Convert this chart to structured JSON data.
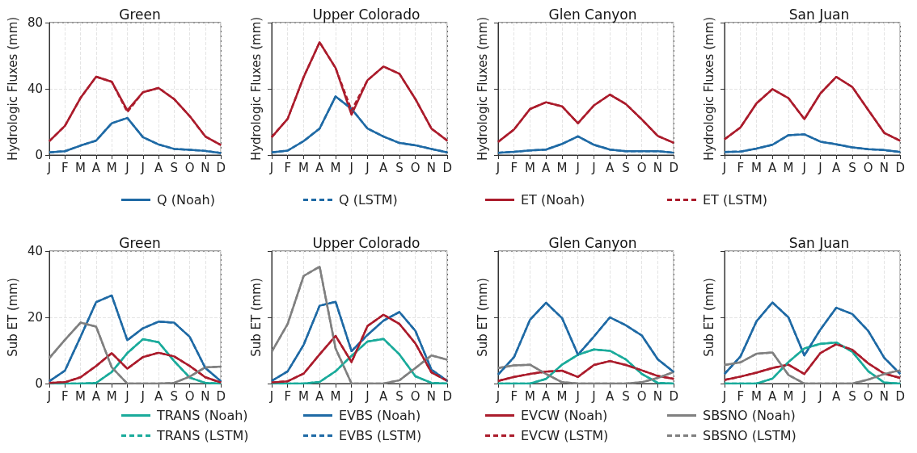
{
  "chart_data": [
    {
      "type": "line",
      "title": "Green",
      "ylabel": "Hydrologic Fluxes (mm)",
      "categories": [
        "J",
        "F",
        "M",
        "A",
        "M",
        "J",
        "J",
        "A",
        "S",
        "O",
        "N",
        "D"
      ],
      "ylim": [
        0,
        80
      ],
      "yticks": [
        0,
        40,
        80
      ],
      "grid": true,
      "legend": "bottom",
      "series": [
        {
          "name": "Q (Noah)",
          "color": "#1f6aa5",
          "values": [
            1.6,
            2.3,
            5.7,
            8.7,
            19.2,
            22.4,
            10.8,
            6.4,
            3.7,
            3.2,
            2.5,
            1.2
          ]
        },
        {
          "name": "Q (LSTM)",
          "color": "#1f6aa5",
          "line_style": "dashed",
          "values": [
            1.6,
            2.3,
            5.7,
            8.7,
            19.2,
            22.4,
            10.8,
            6.4,
            3.7,
            3.2,
            2.5,
            1.2
          ]
        },
        {
          "name": "ET (Noah)",
          "color": "#ab1c2c",
          "values": [
            8.4,
            17.6,
            34.5,
            47.3,
            44.3,
            27,
            37.9,
            40.5,
            33.8,
            23.5,
            11.2,
            6
          ]
        },
        {
          "name": "ET (LSTM)",
          "color": "#ab1c2c",
          "line_style": "dashed",
          "values": [
            8.4,
            17.6,
            34.5,
            47.3,
            44.3,
            26,
            37.9,
            40.5,
            33.8,
            23.5,
            11.2,
            6
          ]
        }
      ]
    },
    {
      "type": "line",
      "title": "Upper Colorado",
      "ylabel": "Hydrologic Fluxes (mm)",
      "categories": [
        "J",
        "F",
        "M",
        "A",
        "M",
        "J",
        "J",
        "A",
        "S",
        "O",
        "N",
        "D"
      ],
      "ylim": [
        0,
        80
      ],
      "yticks": [
        0,
        40,
        80
      ],
      "tick_labels": "x",
      "grid": true,
      "legend": "bottom",
      "series": [
        {
          "name": "Q (Noah)",
          "color": "#1f6aa5",
          "values": [
            1.6,
            2.7,
            8.4,
            16,
            35.4,
            27.9,
            16,
            11.2,
            7.3,
            5.9,
            3.7,
            1.6
          ]
        },
        {
          "name": "Q (LSTM)",
          "color": "#1f6aa5",
          "line_style": "dashed",
          "values": [
            1.6,
            2.7,
            8.4,
            16,
            35.4,
            27.9,
            16,
            11.2,
            7.3,
            5.9,
            3.7,
            1.6
          ]
        },
        {
          "name": "ET (Noah)",
          "color": "#ab1c2c",
          "values": [
            10.8,
            21.9,
            47.1,
            68.1,
            52.6,
            24.4,
            45.2,
            53.5,
            49.1,
            33.8,
            16,
            8.7
          ]
        },
        {
          "name": "ET (LSTM)",
          "color": "#ab1c2c",
          "line_style": "dashed",
          "values": [
            10.8,
            21.9,
            47.1,
            68.1,
            52.6,
            27,
            45.2,
            53.5,
            49.1,
            33.8,
            16,
            8.7
          ]
        }
      ]
    },
    {
      "type": "line",
      "title": "Glen Canyon",
      "ylabel": "Hydrologic Fluxes (mm)",
      "categories": [
        "J",
        "F",
        "M",
        "A",
        "M",
        "J",
        "J",
        "A",
        "S",
        "O",
        "N",
        "D"
      ],
      "ylim": [
        0,
        80
      ],
      "yticks": [
        0,
        40,
        80
      ],
      "tick_labels": "x",
      "grid": true,
      "legend": "bottom",
      "series": [
        {
          "name": "Q (Noah)",
          "color": "#1f6aa5",
          "values": [
            1.4,
            1.9,
            2.8,
            3.3,
            6.7,
            11.3,
            6.2,
            3.3,
            2.3,
            2.3,
            2.3,
            1.4
          ]
        },
        {
          "name": "Q (LSTM)",
          "color": "#1f6aa5",
          "line_style": "dashed",
          "values": [
            1.4,
            1.9,
            2.8,
            3.3,
            6.7,
            11.3,
            6.2,
            3.3,
            2.3,
            2.3,
            2.3,
            1.4
          ]
        },
        {
          "name": "ET (Noah)",
          "color": "#ab1c2c",
          "values": [
            7.9,
            15.5,
            27.8,
            31.9,
            29.4,
            19.2,
            30,
            36.5,
            30.8,
            21.5,
            11.5,
            7.4
          ]
        },
        {
          "name": "ET (LSTM)",
          "color": "#ab1c2c",
          "line_style": "dashed",
          "values": [
            7.9,
            15.5,
            27.8,
            31.9,
            29.4,
            19.2,
            30,
            36.5,
            30.8,
            21.5,
            11.5,
            7.4
          ]
        }
      ]
    },
    {
      "type": "line",
      "title": "San Juan",
      "ylabel": "Hydrologic Fluxes (mm)",
      "categories": [
        "J",
        "F",
        "M",
        "A",
        "M",
        "J",
        "J",
        "A",
        "S",
        "O",
        "N",
        "D"
      ],
      "ylim": [
        0,
        80
      ],
      "yticks": [
        0,
        40,
        80
      ],
      "tick_labels": "x",
      "grid": true,
      "legend": "bottom",
      "series": [
        {
          "name": "Q (Noah)",
          "color": "#1f6aa5",
          "values": [
            1.8,
            2.1,
            3.9,
            6.2,
            12,
            12.5,
            8.1,
            6.5,
            4.6,
            3.5,
            3,
            1.8
          ]
        },
        {
          "name": "Q (LSTM)",
          "color": "#1f6aa5",
          "line_style": "dashed",
          "values": [
            1.8,
            2.1,
            3.9,
            6.2,
            12,
            12.5,
            8.1,
            6.5,
            4.6,
            3.5,
            3,
            1.8
          ]
        },
        {
          "name": "ET (Noah)",
          "color": "#ab1c2c",
          "values": [
            9.5,
            16.7,
            31.2,
            39.8,
            34.4,
            21.7,
            37.2,
            47.2,
            41.1,
            27.2,
            13.4,
            8.6
          ]
        },
        {
          "name": "ET (LSTM)",
          "color": "#ab1c2c",
          "line_style": "dashed",
          "values": [
            9.5,
            16.7,
            31.2,
            39.8,
            34.4,
            21.7,
            37.2,
            47.2,
            41.1,
            27.2,
            13.4,
            8.6
          ]
        }
      ]
    },
    {
      "type": "line",
      "title": "Green",
      "ylabel": "Sub ET (mm)",
      "categories": [
        "J",
        "F",
        "M",
        "A",
        "M",
        "J",
        "J",
        "A",
        "S",
        "O",
        "N",
        "D"
      ],
      "ylim": [
        0,
        40
      ],
      "yticks": [
        0,
        20,
        40
      ],
      "grid": true,
      "legend": "bottom",
      "series": [
        {
          "name": "TRANS (Noah)",
          "color": "#1aab9b",
          "values": [
            0,
            0,
            0,
            0.2,
            3.5,
            9.2,
            13.4,
            12.5,
            6.8,
            1.8,
            0.2,
            0
          ]
        },
        {
          "name": "TRANS (LSTM)",
          "color": "#1aab9b",
          "line_style": "dashed",
          "values": [
            0,
            0,
            0,
            0.2,
            3.5,
            9.2,
            13.4,
            12.5,
            6.8,
            1.8,
            0.2,
            0
          ]
        },
        {
          "name": "EVBS (Noah)",
          "color": "#1f6aa5",
          "values": [
            0.7,
            3.9,
            14.1,
            24.6,
            26.6,
            13.1,
            16.7,
            18.7,
            18.4,
            14.1,
            4.7,
            0.7
          ]
        },
        {
          "name": "EVBS (LSTM)",
          "color": "#1f6aa5",
          "line_style": "dashed",
          "values": [
            0.7,
            3.9,
            14.1,
            24.6,
            26.6,
            13.1,
            16.7,
            18.7,
            18.4,
            14.1,
            4.7,
            0.7
          ]
        },
        {
          "name": "EVCW (Noah)",
          "color": "#ab1c2c",
          "values": [
            0.2,
            0.4,
            1.9,
            5.3,
            9.2,
            4.5,
            8,
            9.3,
            8.2,
            5.3,
            1.9,
            0.3
          ]
        },
        {
          "name": "EVCW (LSTM)",
          "color": "#ab1c2c",
          "line_style": "dashed",
          "values": [
            0.2,
            0.4,
            1.9,
            5.3,
            9.2,
            4.5,
            8,
            9.3,
            8.2,
            5.3,
            1.9,
            0.3
          ]
        },
        {
          "name": "SBSNO (Noah)",
          "color": "#808080",
          "values": [
            7.7,
            13.2,
            18.4,
            17.2,
            4.9,
            0,
            0,
            0,
            0.2,
            2.1,
            4.9,
            5.1
          ]
        },
        {
          "name": "SBSNO (LSTM)",
          "color": "#808080",
          "line_style": "dashed",
          "values": [
            7.7,
            13.2,
            18.4,
            17.2,
            4.9,
            0,
            0,
            0,
            0.2,
            2.1,
            4.9,
            5.1
          ]
        }
      ]
    },
    {
      "type": "line",
      "title": "Upper Colorado",
      "ylabel": "Sub ET (mm)",
      "categories": [
        "J",
        "F",
        "M",
        "A",
        "M",
        "J",
        "J",
        "A",
        "S",
        "O",
        "N",
        "D"
      ],
      "ylim": [
        0,
        40
      ],
      "yticks": [
        0,
        20,
        40
      ],
      "tick_labels": "x",
      "grid": true,
      "legend": "bottom",
      "series": [
        {
          "name": "TRANS (Noah)",
          "color": "#1aab9b",
          "values": [
            0,
            0,
            0,
            0.5,
            3.7,
            8.4,
            12.7,
            13.5,
            8.8,
            2.2,
            0.2,
            0
          ]
        },
        {
          "name": "TRANS (LSTM)",
          "color": "#1aab9b",
          "line_style": "dashed",
          "values": [
            0,
            0,
            0,
            0.5,
            3.7,
            8.4,
            12.7,
            13.5,
            8.8,
            2.2,
            0.2,
            0
          ]
        },
        {
          "name": "EVBS (Noah)",
          "color": "#1f6aa5",
          "values": [
            0.8,
            3.7,
            11.7,
            23.5,
            24.7,
            9.8,
            14.7,
            19,
            21.6,
            15.9,
            4.2,
            0.8
          ]
        },
        {
          "name": "EVBS (LSTM)",
          "color": "#1f6aa5",
          "line_style": "dashed",
          "values": [
            0.8,
            3.7,
            11.7,
            23.5,
            24.7,
            9.8,
            14.7,
            19,
            21.6,
            15.9,
            4.2,
            0.8
          ]
        },
        {
          "name": "EVCW (Noah)",
          "color": "#ab1c2c",
          "values": [
            0.3,
            0.7,
            3,
            8.8,
            14.4,
            6.5,
            17.4,
            20.8,
            18,
            12.1,
            3.4,
            0.8
          ]
        },
        {
          "name": "EVCW (LSTM)",
          "color": "#ab1c2c",
          "line_style": "dashed",
          "values": [
            0.3,
            0.7,
            3,
            8.8,
            14.4,
            6.5,
            17.4,
            20.8,
            18,
            12.1,
            3.4,
            0.8
          ]
        },
        {
          "name": "SBSNO (Noah)",
          "color": "#808080",
          "values": [
            9.6,
            18,
            32.5,
            35.3,
            10.6,
            0,
            0,
            0,
            1,
            4.7,
            8.5,
            7.2
          ]
        },
        {
          "name": "SBSNO (LSTM)",
          "color": "#808080",
          "line_style": "dashed",
          "values": [
            9.6,
            18,
            32.5,
            35.3,
            10.6,
            0,
            0,
            0,
            1,
            4.7,
            8.5,
            7.2
          ]
        }
      ]
    },
    {
      "type": "line",
      "title": "Glen Canyon",
      "ylabel": "Sub ET (mm)",
      "categories": [
        "J",
        "F",
        "M",
        "A",
        "M",
        "J",
        "J",
        "A",
        "S",
        "O",
        "N",
        "D"
      ],
      "ylim": [
        0,
        40
      ],
      "yticks": [
        0,
        20,
        40
      ],
      "tick_labels": "x",
      "grid": true,
      "legend": "bottom",
      "series": [
        {
          "name": "TRANS (Noah)",
          "color": "#1aab9b",
          "values": [
            0,
            0,
            0,
            1.4,
            5.7,
            8.7,
            10.3,
            9.9,
            7.3,
            2.9,
            0.2,
            0
          ]
        },
        {
          "name": "TRANS (LSTM)",
          "color": "#1aab9b",
          "line_style": "dashed",
          "values": [
            0,
            0,
            0,
            1.4,
            5.7,
            8.7,
            10.3,
            9.9,
            7.3,
            2.9,
            0.2,
            0
          ]
        },
        {
          "name": "EVBS (Noah)",
          "color": "#1f6aa5",
          "values": [
            2.7,
            8,
            19.3,
            24.4,
            19.8,
            8.7,
            14.2,
            20,
            17.6,
            14.5,
            7.3,
            3.5
          ]
        },
        {
          "name": "EVBS (LSTM)",
          "color": "#1f6aa5",
          "line_style": "dashed",
          "values": [
            2.7,
            8,
            19.3,
            24.4,
            19.8,
            8.7,
            14.2,
            20,
            17.6,
            14.5,
            7.3,
            3.5
          ]
        },
        {
          "name": "EVCW (Noah)",
          "color": "#ab1c2c",
          "values": [
            0.8,
            2,
            2.9,
            3.6,
            3.9,
            2,
            5.6,
            6.8,
            5.6,
            4,
            2.3,
            1.4
          ]
        },
        {
          "name": "EVCW (LSTM)",
          "color": "#ab1c2c",
          "line_style": "dashed",
          "values": [
            0.8,
            2,
            2.9,
            3.6,
            3.9,
            2,
            5.6,
            6.8,
            5.6,
            4,
            2.3,
            1.4
          ]
        },
        {
          "name": "SBSNO (Noah)",
          "color": "#808080",
          "values": [
            4.7,
            5.5,
            5.7,
            2.9,
            0.4,
            0,
            0,
            0,
            0,
            0.4,
            1.7,
            3.5
          ]
        },
        {
          "name": "SBSNO (LSTM)",
          "color": "#808080",
          "line_style": "dashed",
          "values": [
            4.7,
            5.5,
            5.7,
            2.9,
            0.4,
            0,
            0,
            0,
            0,
            0.4,
            1.7,
            3.5
          ]
        }
      ]
    },
    {
      "type": "line",
      "title": "San Juan",
      "ylabel": "Sub ET (mm)",
      "categories": [
        "J",
        "F",
        "M",
        "A",
        "M",
        "J",
        "J",
        "A",
        "S",
        "O",
        "N",
        "D"
      ],
      "ylim": [
        0,
        40
      ],
      "yticks": [
        0,
        20,
        40
      ],
      "tick_labels": "x",
      "grid": true,
      "legend": "bottom",
      "series": [
        {
          "name": "TRANS (Noah)",
          "color": "#1aab9b",
          "values": [
            0,
            0,
            0,
            1.5,
            6.5,
            10.6,
            12,
            12.4,
            9.6,
            3.7,
            0.3,
            0
          ]
        },
        {
          "name": "TRANS (LSTM)",
          "color": "#1aab9b",
          "line_style": "dashed",
          "values": [
            0,
            0,
            0,
            1.5,
            6.5,
            10.6,
            12,
            12.4,
            9.6,
            3.7,
            0.3,
            0
          ]
        },
        {
          "name": "EVBS (Noah)",
          "color": "#1f6aa5",
          "values": [
            2.9,
            8.2,
            18.8,
            24.5,
            20,
            8.5,
            16.3,
            22.9,
            21,
            15.9,
            7.8,
            2.9
          ]
        },
        {
          "name": "EVBS (LSTM)",
          "color": "#1f6aa5",
          "line_style": "dashed",
          "values": [
            2.9,
            8.2,
            18.8,
            24.5,
            20,
            8.5,
            16.3,
            22.9,
            21,
            15.9,
            7.8,
            2.9
          ]
        },
        {
          "name": "EVCW (Noah)",
          "color": "#ab1c2c",
          "values": [
            1.1,
            2.1,
            3.3,
            4.7,
            5.7,
            2.9,
            9.2,
            11.9,
            10.2,
            6.1,
            3,
            1.7
          ]
        },
        {
          "name": "EVCW (LSTM)",
          "color": "#ab1c2c",
          "line_style": "dashed",
          "values": [
            1.1,
            2.1,
            3.3,
            4.7,
            5.7,
            2.9,
            9.2,
            11.9,
            10.2,
            6.1,
            3,
            1.7
          ]
        },
        {
          "name": "SBSNO (Noah)",
          "color": "#808080",
          "values": [
            5.6,
            6.4,
            9,
            9.4,
            2.6,
            0,
            0,
            0,
            0,
            1.2,
            2.9,
            4
          ]
        },
        {
          "name": "SBSNO (LSTM)",
          "color": "#808080",
          "line_style": "dashed",
          "values": [
            5.6,
            6.4,
            9,
            9.4,
            2.6,
            0,
            0,
            0,
            0,
            1.2,
            2.9,
            4
          ]
        }
      ]
    }
  ]
}
